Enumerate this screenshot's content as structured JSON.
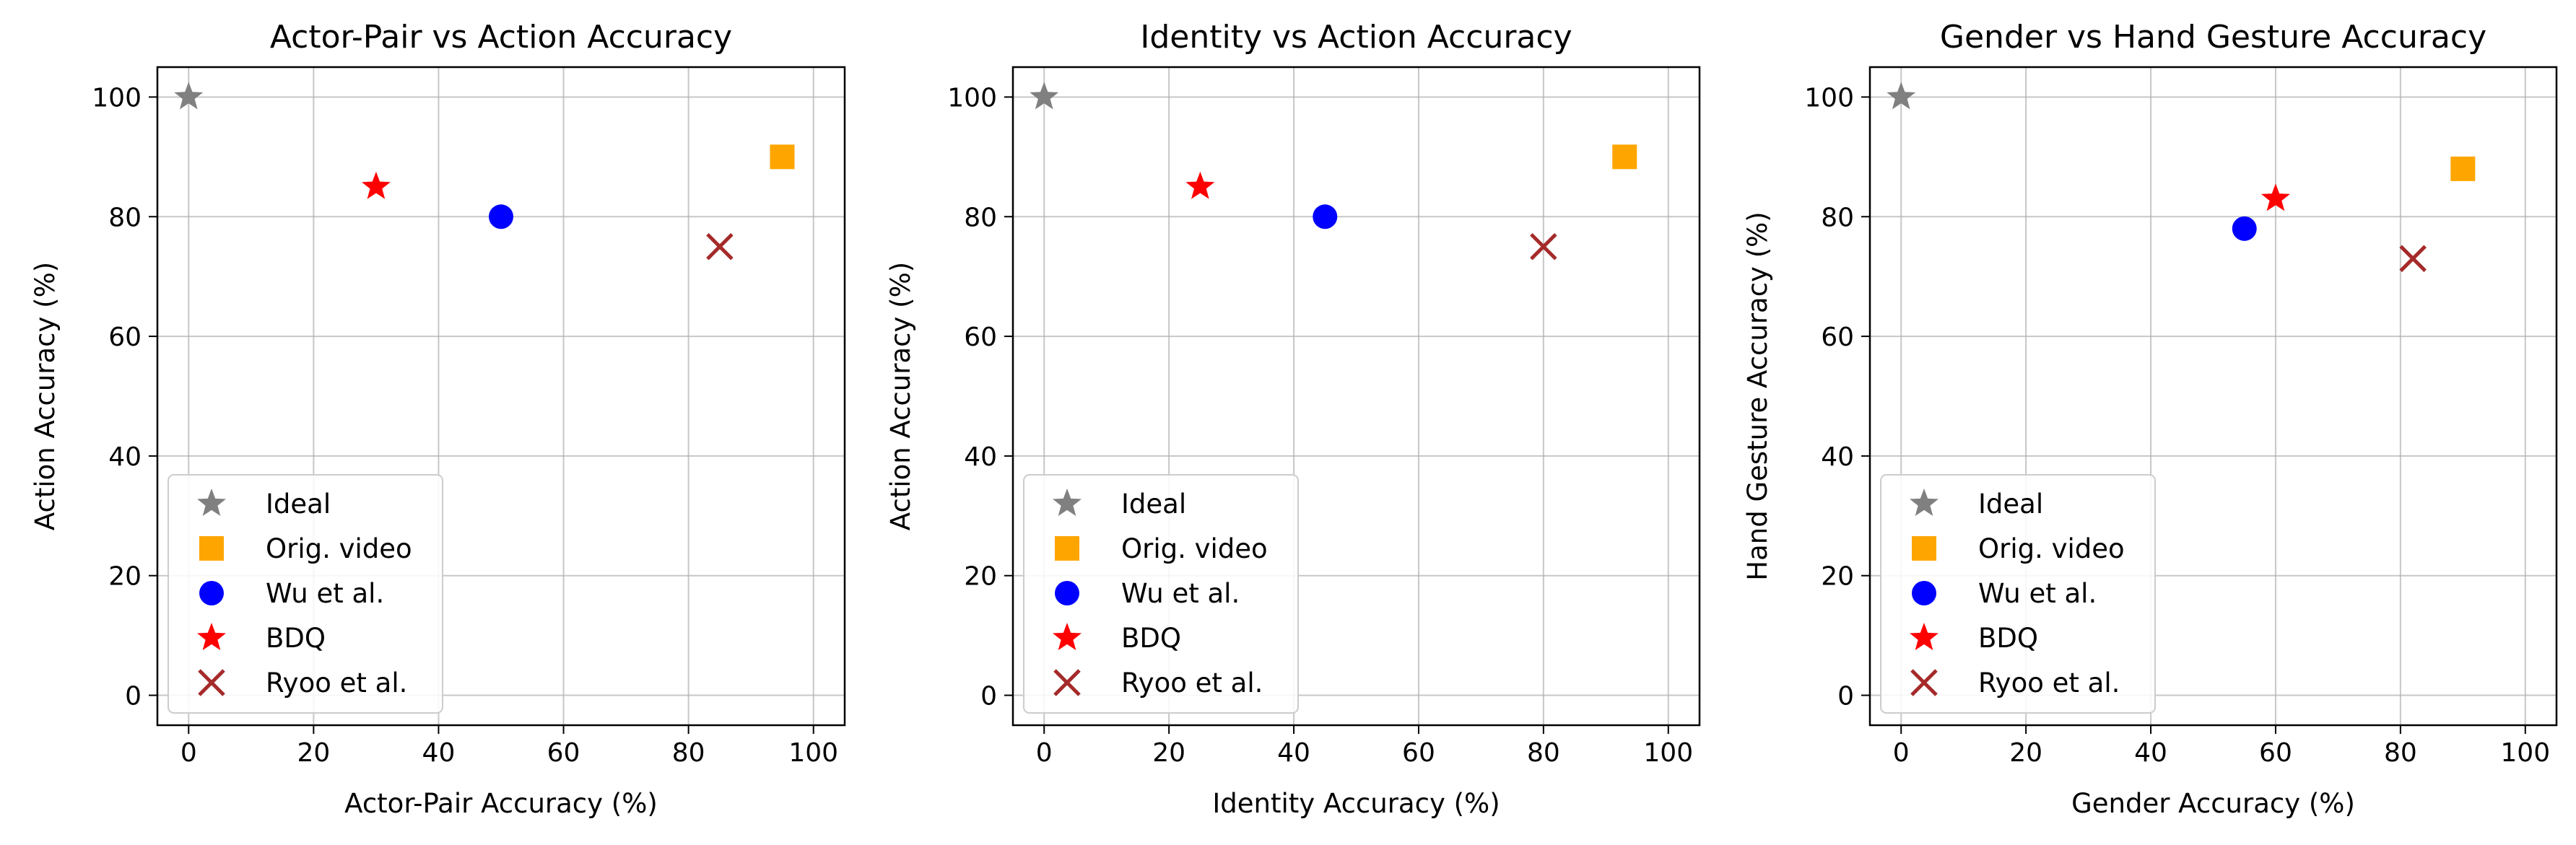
{
  "chart_data": [
    {
      "type": "scatter",
      "title": "Actor-Pair vs Action Accuracy",
      "xlabel": "Actor-Pair Accuracy (%)",
      "ylabel": "Action Accuracy (%)",
      "xlim": [
        -5,
        105
      ],
      "ylim": [
        -5,
        105
      ],
      "xticks": [
        "0",
        "20",
        "40",
        "60",
        "80",
        "100"
      ],
      "yticks": [
        "0",
        "20",
        "40",
        "60",
        "80",
        "100"
      ],
      "grid": true,
      "legend_position": "lower-left",
      "series": [
        {
          "name": "Ideal",
          "marker": "star",
          "color": "#808080",
          "x": [
            0
          ],
          "y": [
            100
          ]
        },
        {
          "name": "Orig. video",
          "marker": "square",
          "color": "#ffa500",
          "x": [
            95
          ],
          "y": [
            90
          ]
        },
        {
          "name": "Wu et al.",
          "marker": "circle",
          "color": "#0000ff",
          "x": [
            50
          ],
          "y": [
            80
          ]
        },
        {
          "name": "BDQ",
          "marker": "star",
          "color": "#ff0000",
          "x": [
            30
          ],
          "y": [
            85
          ]
        },
        {
          "name": "Ryoo et al.",
          "marker": "x",
          "color": "#a52a2a",
          "x": [
            85
          ],
          "y": [
            75
          ]
        }
      ]
    },
    {
      "type": "scatter",
      "title": "Identity vs Action Accuracy",
      "xlabel": "Identity Accuracy (%)",
      "ylabel": "Action Accuracy (%)",
      "xlim": [
        -5,
        105
      ],
      "ylim": [
        -5,
        105
      ],
      "xticks": [
        "0",
        "20",
        "40",
        "60",
        "80",
        "100"
      ],
      "yticks": [
        "0",
        "20",
        "40",
        "60",
        "80",
        "100"
      ],
      "grid": true,
      "legend_position": "lower-left",
      "series": [
        {
          "name": "Ideal",
          "marker": "star",
          "color": "#808080",
          "x": [
            0
          ],
          "y": [
            100
          ]
        },
        {
          "name": "Orig. video",
          "marker": "square",
          "color": "#ffa500",
          "x": [
            93
          ],
          "y": [
            90
          ]
        },
        {
          "name": "Wu et al.",
          "marker": "circle",
          "color": "#0000ff",
          "x": [
            45
          ],
          "y": [
            80
          ]
        },
        {
          "name": "BDQ",
          "marker": "star",
          "color": "#ff0000",
          "x": [
            25
          ],
          "y": [
            85
          ]
        },
        {
          "name": "Ryoo et al.",
          "marker": "x",
          "color": "#a52a2a",
          "x": [
            80
          ],
          "y": [
            75
          ]
        }
      ]
    },
    {
      "type": "scatter",
      "title": "Gender vs Hand Gesture Accuracy",
      "xlabel": "Gender Accuracy (%)",
      "ylabel": "Hand Gesture Accuracy (%)",
      "xlim": [
        -5,
        105
      ],
      "ylim": [
        -5,
        105
      ],
      "xticks": [
        "0",
        "20",
        "40",
        "60",
        "80",
        "100"
      ],
      "yticks": [
        "0",
        "20",
        "40",
        "60",
        "80",
        "100"
      ],
      "grid": true,
      "legend_position": "lower-left",
      "series": [
        {
          "name": "Ideal",
          "marker": "star",
          "color": "#808080",
          "x": [
            0
          ],
          "y": [
            100
          ]
        },
        {
          "name": "Orig. video",
          "marker": "square",
          "color": "#ffa500",
          "x": [
            90
          ],
          "y": [
            88
          ]
        },
        {
          "name": "Wu et al.",
          "marker": "circle",
          "color": "#0000ff",
          "x": [
            55
          ],
          "y": [
            78
          ]
        },
        {
          "name": "BDQ",
          "marker": "star",
          "color": "#ff0000",
          "x": [
            60
          ],
          "y": [
            83
          ]
        },
        {
          "name": "Ryoo et al.",
          "marker": "x",
          "color": "#a52a2a",
          "x": [
            82
          ],
          "y": [
            73
          ]
        }
      ]
    }
  ]
}
